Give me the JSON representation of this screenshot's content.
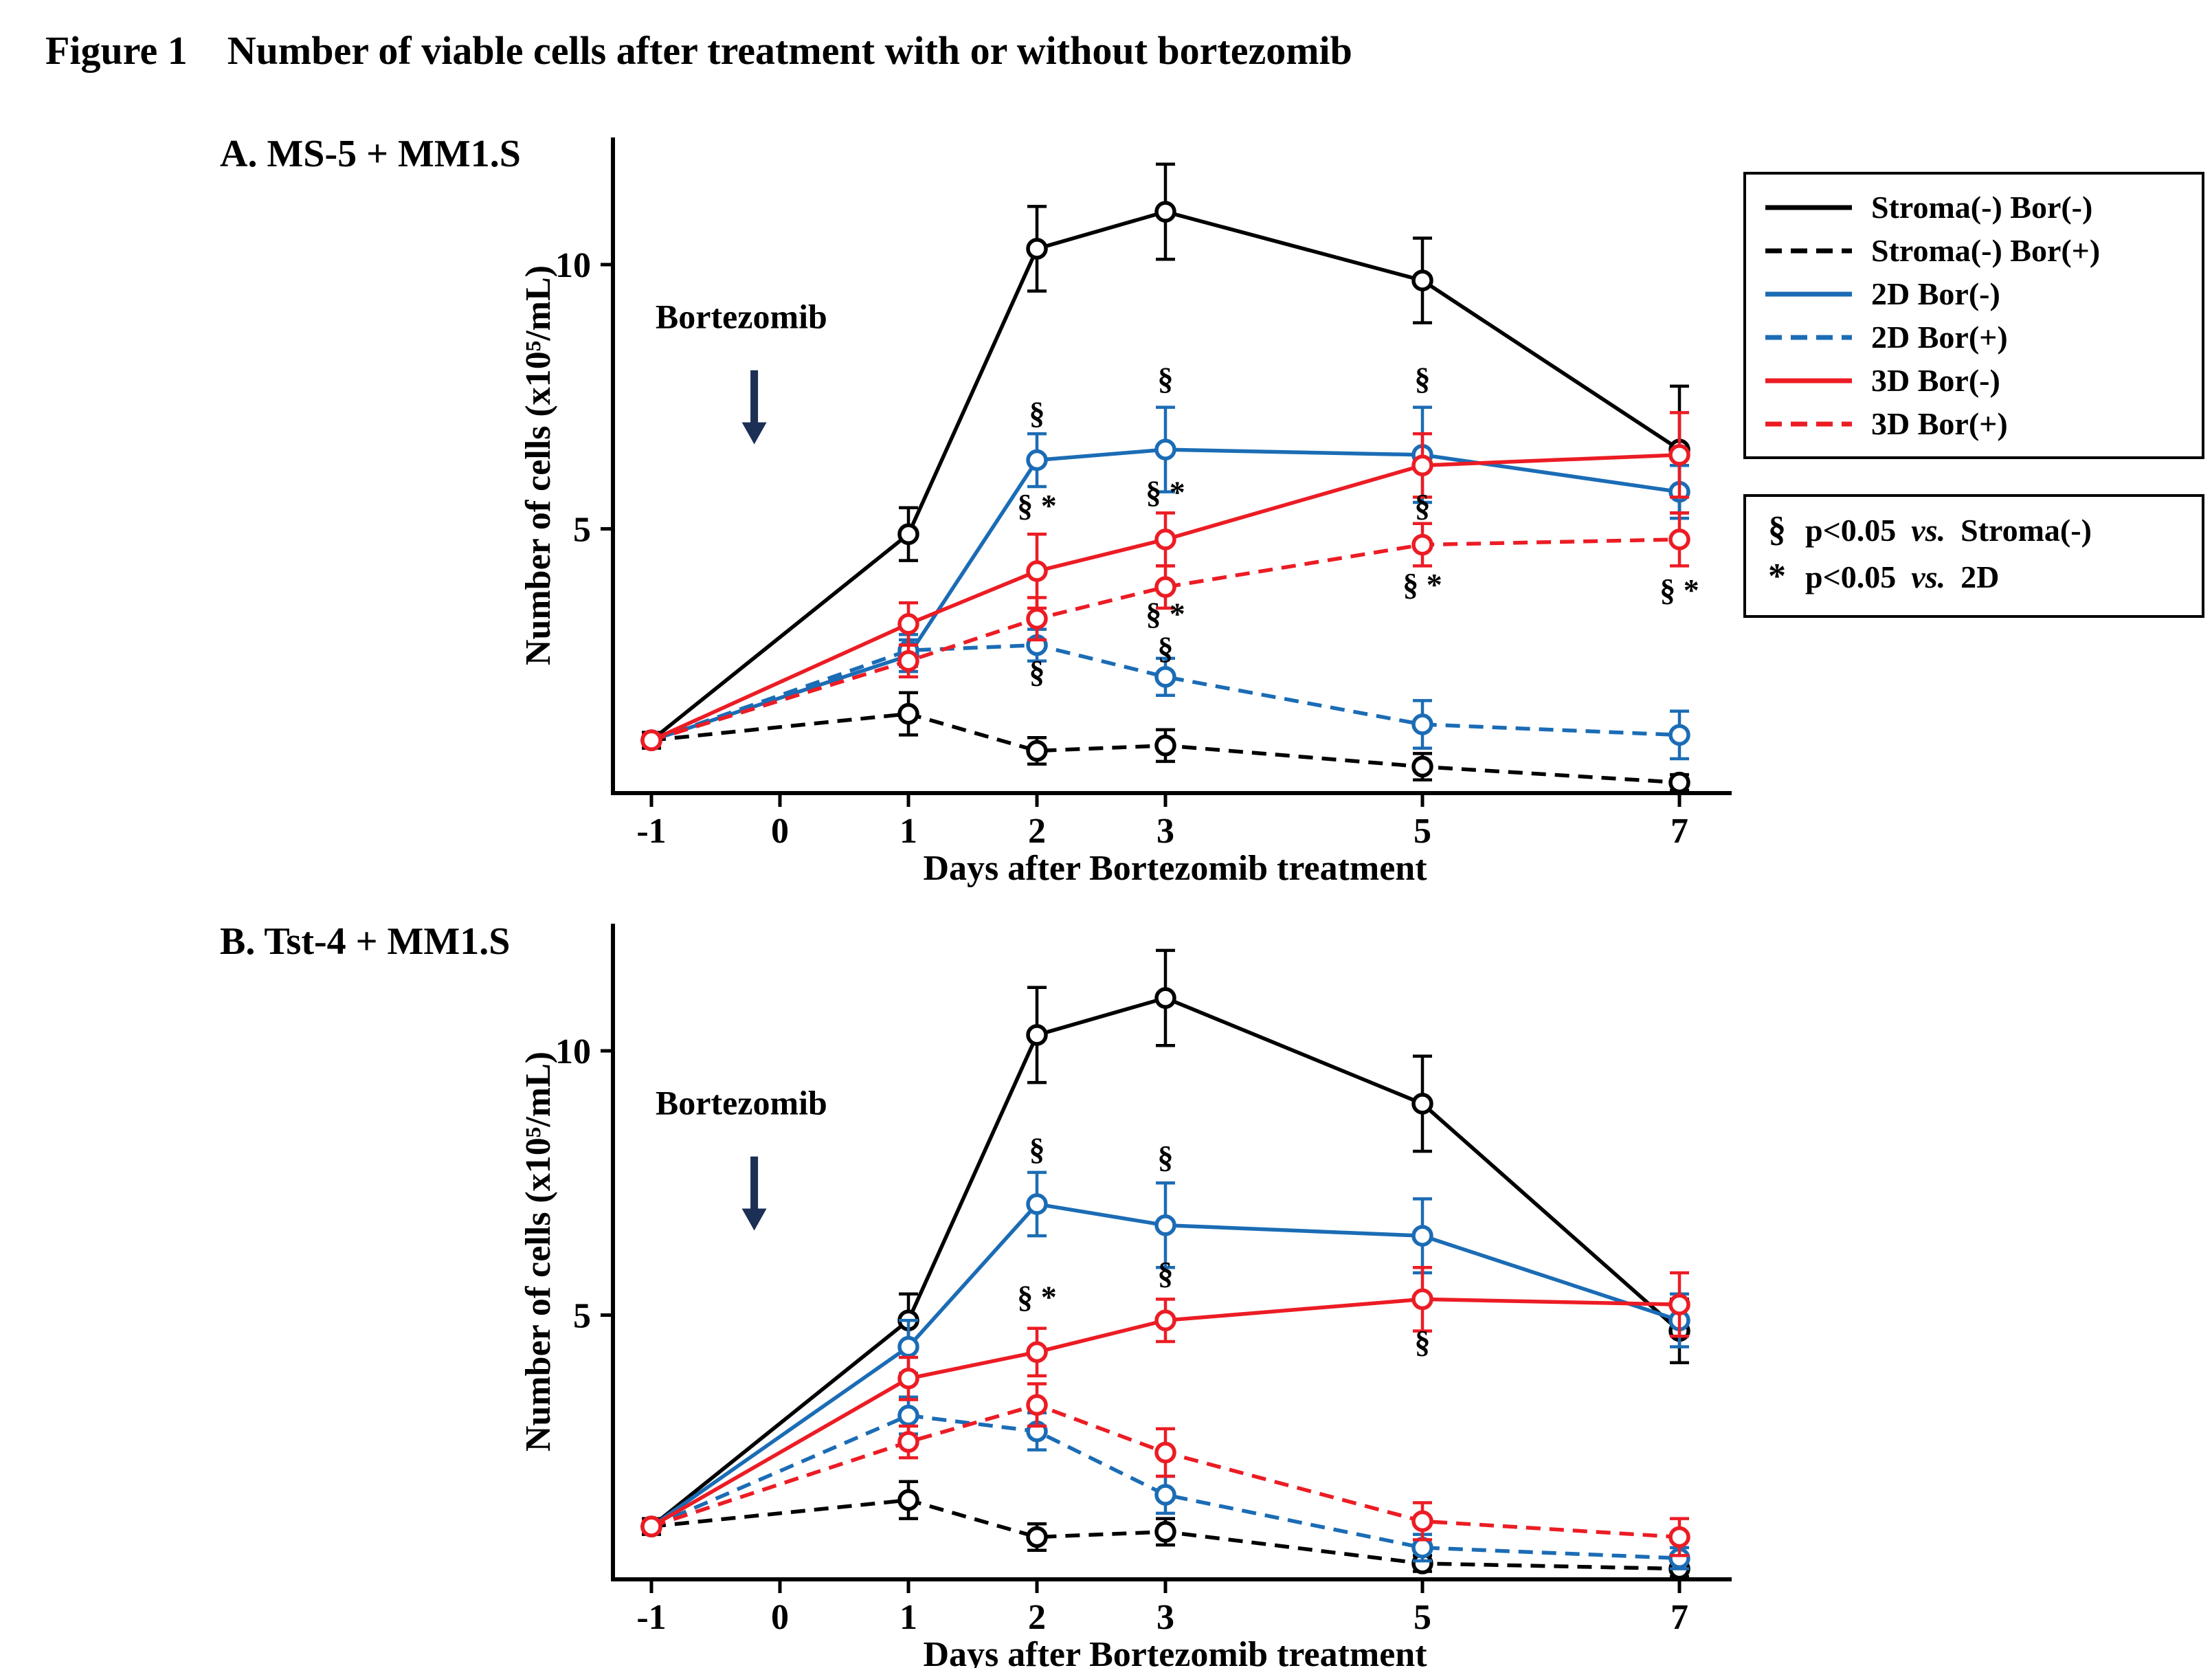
{
  "figure": {
    "label": "Figure 1",
    "title": "Number of viable cells after treatment with or without bortezomib"
  },
  "colors": {
    "black": "#000000",
    "blue": "#1b6cb5",
    "red": "#ec1c24",
    "arrow": "#1c2f55"
  },
  "legend": {
    "entries": [
      {
        "label": "Stroma(-) Bor(-)",
        "color": "#000000",
        "dashed": false
      },
      {
        "label": "Stroma(-) Bor(+)",
        "color": "#000000",
        "dashed": true
      },
      {
        "label": "2D Bor(-)",
        "color": "#1b6cb5",
        "dashed": false
      },
      {
        "label": "2D Bor(+)",
        "color": "#1b6cb5",
        "dashed": true
      },
      {
        "label": "3D Bor(-)",
        "color": "#ec1c24",
        "dashed": false
      },
      {
        "label": "3D Bor(+)",
        "color": "#ec1c24",
        "dashed": true
      }
    ]
  },
  "significance": [
    {
      "symbol": "§",
      "text": "p<0.05",
      "vs": "vs.",
      "target": "Stroma(-)"
    },
    {
      "symbol": "*",
      "text": "p<0.05",
      "vs": "vs.",
      "target": "2D"
    }
  ],
  "axes": {
    "xlabel": "Days after Bortezomib treatment",
    "ylabel": "Number of cells (x10⁵/mL)",
    "xticks": [
      -1,
      0,
      1,
      2,
      3,
      5,
      7
    ],
    "yticks": [
      5,
      10
    ],
    "ylim": [
      0,
      12.4
    ],
    "grid": false,
    "legend_position": "outside-right"
  },
  "chart_data": [
    {
      "type": "line",
      "title": "A. MS-5 + MM1.S",
      "x": [
        -1,
        1,
        2,
        3,
        5,
        7
      ],
      "series": [
        {
          "name": "Stroma(-) Bor(-)",
          "color": "#000000",
          "dashed": false,
          "values": [
            1.0,
            4.9,
            10.3,
            11.0,
            9.7,
            6.5
          ],
          "errors": [
            0.15,
            0.5,
            0.8,
            0.9,
            0.8,
            1.2
          ]
        },
        {
          "name": "Stroma(-) Bor(+)",
          "color": "#000000",
          "dashed": true,
          "values": [
            1.0,
            1.5,
            0.8,
            0.9,
            0.5,
            0.2
          ],
          "errors": [
            0.1,
            0.4,
            0.25,
            0.3,
            0.25,
            0.15
          ]
        },
        {
          "name": "2D Bor(-)",
          "color": "#1b6cb5",
          "dashed": false,
          "values": [
            1.0,
            2.6,
            6.3,
            6.5,
            6.4,
            5.7
          ],
          "errors": [
            0.1,
            0.3,
            0.5,
            0.8,
            0.9,
            0.5
          ]
        },
        {
          "name": "2D Bor(+)",
          "color": "#1b6cb5",
          "dashed": true,
          "values": [
            1.0,
            2.7,
            2.8,
            2.2,
            1.3,
            1.1
          ],
          "errors": [
            0.1,
            0.3,
            0.3,
            0.35,
            0.45,
            0.45
          ]
        },
        {
          "name": "3D Bor(-)",
          "color": "#ec1c24",
          "dashed": false,
          "values": [
            1.0,
            3.2,
            4.2,
            4.8,
            6.2,
            6.4
          ],
          "errors": [
            0.1,
            0.4,
            0.7,
            0.5,
            0.6,
            0.8
          ]
        },
        {
          "name": "3D Bor(+)",
          "color": "#ec1c24",
          "dashed": true,
          "values": [
            1.0,
            2.5,
            3.3,
            3.9,
            4.7,
            4.8
          ],
          "errors": [
            0.1,
            0.3,
            0.4,
            0.4,
            0.4,
            0.5
          ]
        }
      ],
      "annotations": [
        {
          "x": 2,
          "y": 7.2,
          "text": "§"
        },
        {
          "x": 3,
          "y": 7.85,
          "text": "§"
        },
        {
          "x": 5,
          "y": 7.85,
          "text": "§"
        },
        {
          "x": 2,
          "y": 5.45,
          "text": "§ *"
        },
        {
          "x": 3,
          "y": 5.7,
          "text": "§ *"
        },
        {
          "x": 5,
          "y": 5.45,
          "text": "§"
        },
        {
          "x": 2,
          "y": 2.3,
          "text": "§"
        },
        {
          "x": 3,
          "y": 3.4,
          "text": "§ *"
        },
        {
          "x": 3,
          "y": 2.75,
          "text": "§"
        },
        {
          "x": 5,
          "y": 3.95,
          "text": "§ *"
        },
        {
          "x": 7,
          "y": 3.85,
          "text": "§ *"
        }
      ],
      "bortezomib": {
        "label": "Bortezomib",
        "day": -0.3,
        "arrow_day": -0.2,
        "label_value": 8.8,
        "arrow_from": 8.0,
        "arrow_to": 6.6
      }
    },
    {
      "type": "line",
      "title": "B. Tst-4 + MM1.S",
      "x": [
        -1,
        1,
        2,
        3,
        5,
        7
      ],
      "series": [
        {
          "name": "Stroma(-) Bor(-)",
          "color": "#000000",
          "dashed": false,
          "values": [
            1.0,
            4.9,
            10.3,
            11.0,
            9.0,
            4.7
          ],
          "errors": [
            0.15,
            0.5,
            0.9,
            0.9,
            0.9,
            0.6
          ]
        },
        {
          "name": "Stroma(-) Bor(+)",
          "color": "#000000",
          "dashed": true,
          "values": [
            1.0,
            1.5,
            0.8,
            0.9,
            0.3,
            0.2
          ],
          "errors": [
            0.1,
            0.35,
            0.25,
            0.25,
            0.15,
            0.15
          ]
        },
        {
          "name": "2D Bor(-)",
          "color": "#1b6cb5",
          "dashed": false,
          "values": [
            1.0,
            4.4,
            7.1,
            6.7,
            6.5,
            4.9
          ],
          "errors": [
            0.1,
            0.5,
            0.6,
            0.8,
            0.7,
            0.5
          ]
        },
        {
          "name": "2D Bor(+)",
          "color": "#1b6cb5",
          "dashed": true,
          "values": [
            1.0,
            3.1,
            2.8,
            1.6,
            0.6,
            0.4
          ],
          "errors": [
            0.1,
            0.35,
            0.35,
            0.35,
            0.25,
            0.2
          ]
        },
        {
          "name": "3D Bor(-)",
          "color": "#ec1c24",
          "dashed": false,
          "values": [
            1.0,
            3.8,
            4.3,
            4.9,
            5.3,
            5.2
          ],
          "errors": [
            0.1,
            0.4,
            0.45,
            0.4,
            0.6,
            0.6
          ]
        },
        {
          "name": "3D Bor(+)",
          "color": "#ec1c24",
          "dashed": true,
          "values": [
            1.0,
            2.6,
            3.3,
            2.4,
            1.1,
            0.8
          ],
          "errors": [
            0.1,
            0.3,
            0.4,
            0.45,
            0.35,
            0.35
          ]
        }
      ],
      "annotations": [
        {
          "x": 2,
          "y": 8.15,
          "text": "§"
        },
        {
          "x": 3,
          "y": 8.0,
          "text": "§"
        },
        {
          "x": 2,
          "y": 5.35,
          "text": "§ *"
        },
        {
          "x": 3,
          "y": 5.8,
          "text": "§"
        },
        {
          "x": 5,
          "y": 4.5,
          "text": "§"
        }
      ],
      "bortezomib": {
        "label": "Bortezomib",
        "day": -0.3,
        "arrow_day": -0.2,
        "label_value": 8.8,
        "arrow_from": 8.0,
        "arrow_to": 6.6
      }
    }
  ]
}
